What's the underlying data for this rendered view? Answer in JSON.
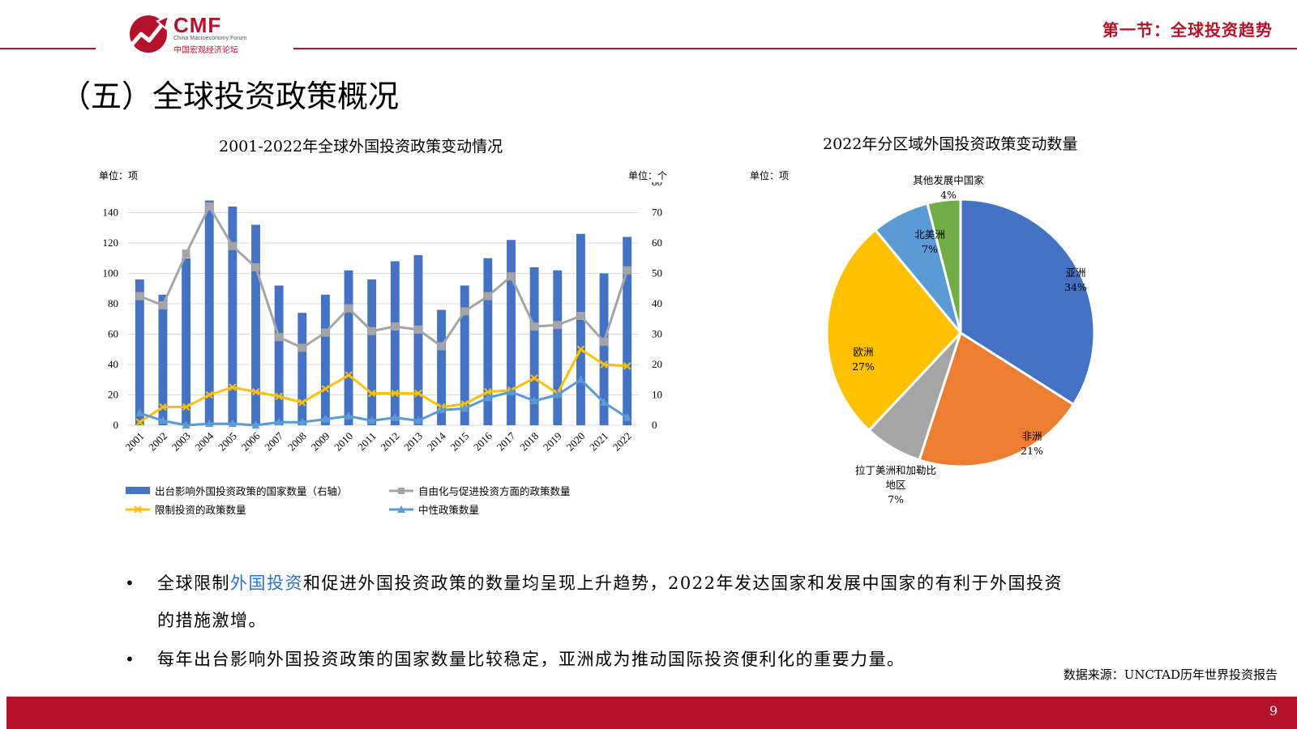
{
  "header": {
    "logo_main": "CMF",
    "logo_sub_en": "China Macroeconomy Forum",
    "logo_sub_cn": "中国宏观经济论坛",
    "section": "第一节：全球投资趋势"
  },
  "page_title": "（五）全球投资政策概况",
  "colors": {
    "brand_red": "#b4122a",
    "bar_blue": "#4472c4",
    "gray": "#a5a5a5",
    "yellow": "#ffc000",
    "light_blue": "#5b9bd5",
    "orange": "#ed7d31",
    "green": "#70ad47"
  },
  "chart_data": [
    {
      "type": "bar",
      "title": "2001-2022年全球外国投资政策变动情况",
      "unit_left": "单位：项",
      "unit_right": "单位：个",
      "categories": [
        "2001",
        "2002",
        "2003",
        "2004",
        "2005",
        "2006",
        "2007",
        "2008",
        "2009",
        "2010",
        "2011",
        "2012",
        "2013",
        "2014",
        "2015",
        "2016",
        "2017",
        "2018",
        "2019",
        "2020",
        "2021",
        "2022"
      ],
      "ylim_left": [
        0,
        160
      ],
      "yticks_left": [
        0,
        20,
        40,
        60,
        80,
        100,
        120,
        140
      ],
      "ylim_right": [
        0,
        80
      ],
      "yticks_right": [
        0,
        10,
        20,
        30,
        40,
        50,
        60,
        70,
        80
      ],
      "series": [
        {
          "name": "出台影响外国投资政策的国家数量（右轴）",
          "type": "bar",
          "axis": "right",
          "values": [
            48,
            43,
            55,
            74,
            72,
            66,
            46,
            37,
            43,
            51,
            48,
            54,
            56,
            38,
            46,
            55,
            61,
            52,
            51,
            63,
            50,
            62
          ]
        },
        {
          "name": "自由化与促进投资方面的政策数量",
          "type": "line",
          "axis": "left",
          "values": [
            85,
            79,
            113,
            144,
            118,
            104,
            58,
            51,
            61,
            77,
            62,
            65,
            63,
            52,
            75,
            85,
            98,
            65,
            66,
            72,
            55,
            102
          ]
        },
        {
          "name": "限制投资的政策数量",
          "type": "line",
          "axis": "left",
          "values": [
            2,
            12,
            12,
            20,
            25,
            22,
            19,
            15,
            24,
            33,
            21,
            21,
            21,
            12,
            14,
            22,
            23,
            31,
            21,
            50,
            40,
            39
          ]
        },
        {
          "name": "中性政策数量",
          "type": "line",
          "axis": "left",
          "values": [
            8,
            3,
            0,
            1,
            1,
            0,
            2,
            2,
            4,
            6,
            3,
            5,
            3,
            10,
            11,
            18,
            22,
            16,
            20,
            30,
            15,
            5
          ]
        }
      ]
    },
    {
      "type": "pie",
      "title": "2022年分区域外国投资政策变动数量",
      "unit": "单位：项",
      "slices": [
        {
          "name": "亚洲",
          "percent": "34%",
          "value": 34
        },
        {
          "name": "非洲",
          "percent": "21%",
          "value": 21
        },
        {
          "name": "拉丁美洲和加勒比地区",
          "name_line1": "拉丁美洲和加勒比",
          "name_line2": "地区",
          "percent": "7%",
          "value": 7
        },
        {
          "name": "欧洲",
          "percent": "27%",
          "value": 27
        },
        {
          "name": "北美洲",
          "percent": "7%",
          "value": 7
        },
        {
          "name": "其他发展中国家",
          "percent": "4%",
          "value": 4
        }
      ]
    }
  ],
  "bullets": [
    {
      "before": "全球限制",
      "link": "外国投资",
      "after_line1": "和促进外国投资政策的数量均呈现上升趋势，2022年发达国家和发展中国家的有利于外国投资",
      "line2": "的措施激增。"
    },
    {
      "text": "每年出台影响外国投资政策的国家数量比较稳定，亚洲成为推动国际投资便利化的重要力量。"
    }
  ],
  "source": "数据来源：UNCTAD历年世界投资报告",
  "page_number": "9"
}
